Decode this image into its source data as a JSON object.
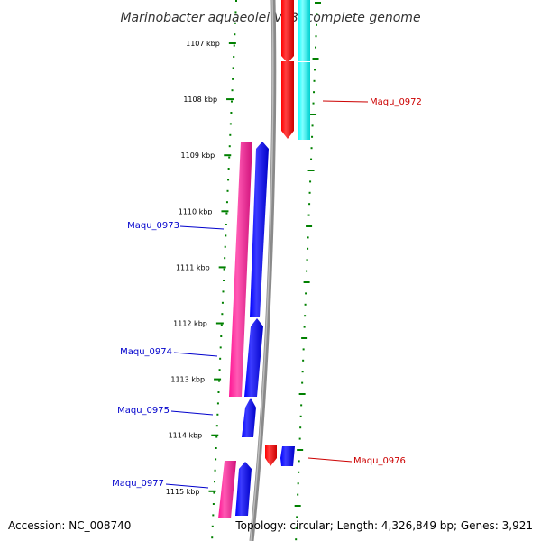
{
  "title": "Marinobacter aquaeolei VT8, complete genome",
  "accession": "Accession: NC_008740",
  "summary": "Topology: circular; Length: 4,326,849 bp; Genes: 3,921",
  "colors": {
    "backbone": "#808080",
    "tick": "#008000",
    "forward_cds": "#0000ff",
    "forward_rna": "#ff1493",
    "reverse_cds": "#ff0000",
    "reverse_rna": "#00ffff",
    "label_forward": "#0000cc",
    "label_reverse": "#cc0000"
  },
  "ticks": [
    "1107 kbp",
    "1108 kbp",
    "1109 kbp",
    "1110 kbp",
    "1111 kbp",
    "1112 kbp",
    "1113 kbp",
    "1114 kbp",
    "1115 kbp"
  ],
  "gene_labels": [
    {
      "id": "g0972",
      "text": "Maqu_0972",
      "strand": "reverse"
    },
    {
      "id": "g0973",
      "text": "Maqu_0973",
      "strand": "forward"
    },
    {
      "id": "g0974",
      "text": "Maqu_0974",
      "strand": "forward"
    },
    {
      "id": "g0975",
      "text": "Maqu_0975",
      "strand": "forward"
    },
    {
      "id": "g0976",
      "text": "Maqu_0976",
      "strand": "reverse"
    },
    {
      "id": "g0977",
      "text": "Maqu_0977",
      "strand": "forward"
    }
  ]
}
